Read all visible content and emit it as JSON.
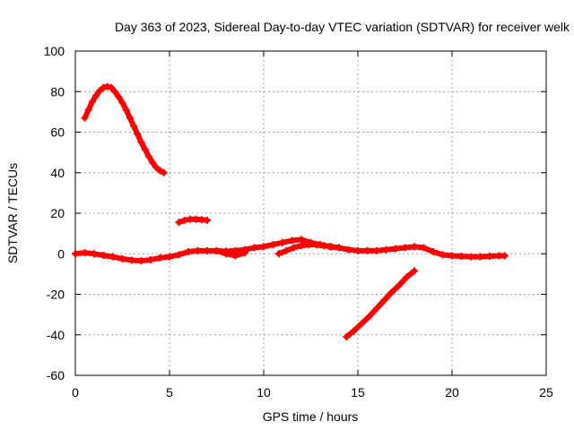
{
  "chart_data": {
    "type": "scatter",
    "title": "Day 363 of 2023, Sidereal Day-to-day VTEC variation (SDTVAR) for receiver welk",
    "xlabel": "GPS time / hours",
    "ylabel": "SDTVAR / TECUs",
    "xlim": [
      0,
      25
    ],
    "ylim": [
      -60,
      100
    ],
    "xticks": [
      0,
      5,
      10,
      15,
      20,
      25
    ],
    "yticks": [
      -60,
      -40,
      -20,
      0,
      20,
      40,
      60,
      80,
      100
    ],
    "grid": true,
    "marker": "+",
    "series_color": "#ff0000",
    "series": [
      {
        "name": "arc-1",
        "x": [
          0.5,
          0.7,
          0.9,
          1.1,
          1.3,
          1.5,
          1.7,
          1.9,
          2.1,
          2.3,
          2.5,
          2.7,
          2.9,
          3.1,
          3.3,
          3.5,
          3.7,
          3.9,
          4.1,
          4.3,
          4.5,
          4.7
        ],
        "y": [
          67,
          71,
          75,
          78,
          80.5,
          82,
          82.5,
          82,
          80,
          77.5,
          74.5,
          71,
          67,
          63,
          59,
          55,
          51.5,
          48,
          45,
          42.5,
          41,
          40
        ]
      },
      {
        "name": "arc-2",
        "x": [
          5.5,
          5.8,
          6.1,
          6.4,
          6.7,
          7.0
        ],
        "y": [
          15.5,
          16.5,
          17,
          17,
          16.8,
          16.5
        ]
      },
      {
        "name": "arc-3",
        "x": [
          0,
          0.5,
          1.0,
          1.5,
          2.0,
          2.5,
          3.0,
          3.5,
          4.0,
          4.5,
          5.0,
          5.5,
          6.0,
          6.5,
          7.0,
          7.5,
          8.0,
          8.5,
          9.0,
          9.5,
          10.0,
          10.5,
          11.0,
          11.5,
          12.0,
          12.5,
          13.0,
          13.5,
          14.0,
          14.5,
          15.0,
          15.5,
          16.0,
          16.5,
          17.0,
          17.5,
          18.0,
          18.5,
          19.0,
          19.5,
          20.0,
          20.5,
          21.0,
          21.5,
          22.0,
          22.5,
          22.8
        ],
        "y": [
          0,
          0.5,
          0,
          -0.8,
          -1.5,
          -2.5,
          -3.2,
          -3.5,
          -3,
          -2,
          -1.5,
          -0.5,
          1,
          1.5,
          1.5,
          1.5,
          1.2,
          1.5,
          2,
          3,
          3.5,
          4.5,
          5.5,
          6.5,
          7,
          5.5,
          4.5,
          3.5,
          3,
          2,
          1.5,
          1.5,
          1.5,
          2,
          2.5,
          3,
          3.5,
          3,
          1,
          -0.5,
          -1,
          -1.2,
          -1.5,
          -1.5,
          -1.2,
          -1,
          -1
        ]
      },
      {
        "name": "arc-4",
        "x": [
          7.5,
          8.0,
          8.5,
          9.0
        ],
        "y": [
          1.5,
          0,
          -1,
          0.5
        ]
      },
      {
        "name": "arc-5",
        "x": [
          10.8,
          11.2,
          11.6,
          12.0,
          12.4,
          12.8,
          13.2,
          13.6,
          14.0
        ],
        "y": [
          0,
          1.5,
          3,
          4,
          4.5,
          4.5,
          4,
          3.5,
          3
        ]
      },
      {
        "name": "arc-6",
        "x": [
          14.4,
          14.8,
          15.2,
          15.6,
          16.0,
          16.4,
          16.8,
          17.2,
          17.6,
          18.0
        ],
        "y": [
          -41,
          -38,
          -34.5,
          -31,
          -27,
          -23,
          -19,
          -15.5,
          -11.5,
          -8.5
        ]
      }
    ]
  }
}
